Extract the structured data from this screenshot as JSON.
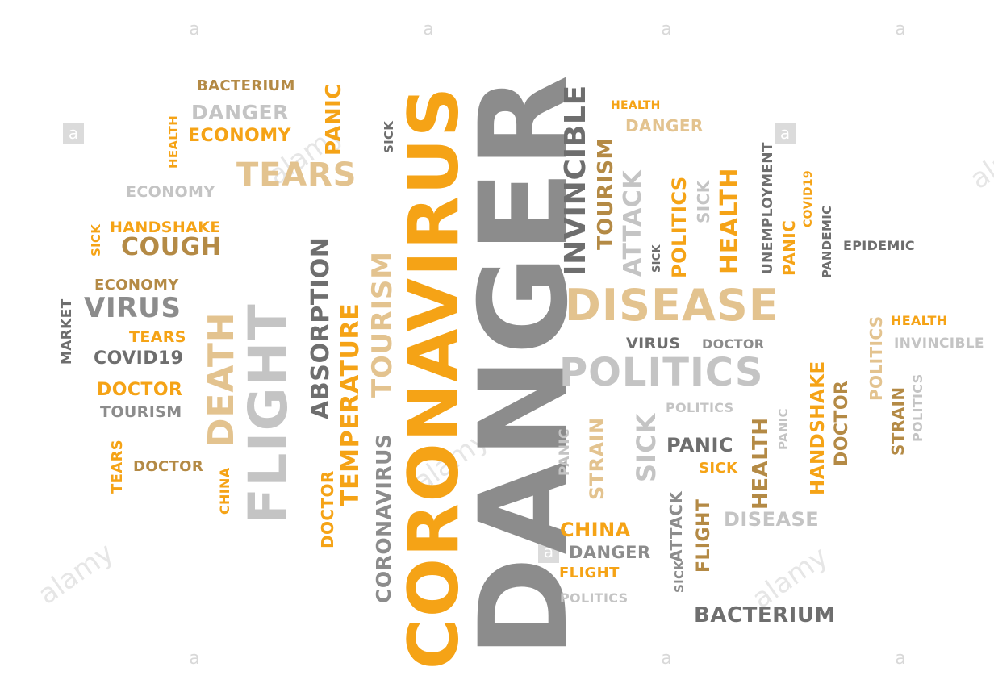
{
  "watermark": {
    "text": "alamy",
    "mark": "a"
  },
  "colors": {
    "orange": "#f5a316",
    "gray": "#8c8c8c",
    "light_gray": "#c4c4c4",
    "tan": "#e3c38f",
    "dark_gray": "#6e6e6e",
    "brown": "#b48a45"
  },
  "words": [
    "DANGER",
    "CORONAVIRUS",
    "DISEASE",
    "POLITICS",
    "FLIGHT",
    "DEATH",
    "TEARS",
    "ABSORPTION",
    "TEMPERATURE",
    "TOURISM",
    "CORONAVIRUS",
    "INVINCIBLE",
    "TOURISM",
    "ATTACK",
    "HEALTH",
    "POLITICS",
    "SICK",
    "BACTERIUM",
    "DANGER",
    "ECONOMY",
    "PANIC",
    "HEALTH",
    "SICK",
    "ECONOMY",
    "HANDSHAKE",
    "COUGH",
    "SICK",
    "ECONOMY",
    "VIRUS",
    "MARKET",
    "TEARS",
    "COVID19",
    "DOCTOR",
    "TOURISM",
    "TEARS",
    "DOCTOR",
    "CHINA",
    "DOCTOR",
    "HEALTH",
    "DANGER",
    "UNEMPLOYMENT",
    "COVID19",
    "PANIC",
    "PANDEMIC",
    "EPIDEMIC",
    "HEALTH",
    "INVINCIBLE",
    "POLITICS",
    "POLITICS",
    "STRAIN",
    "VIRUS",
    "DOCTOR",
    "POLITICS",
    "PANIC",
    "STRAIN",
    "SICK",
    "PANIC",
    "SICK",
    "HEALTH",
    "PANIC",
    "HANDSHAKE",
    "DOCTOR",
    "DISEASE",
    "ATTACK",
    "FLIGHT",
    "CHINA",
    "DANGER",
    "FLIGHT",
    "POLITICS",
    "SICK",
    "BACTERIUM",
    "SICK"
  ]
}
